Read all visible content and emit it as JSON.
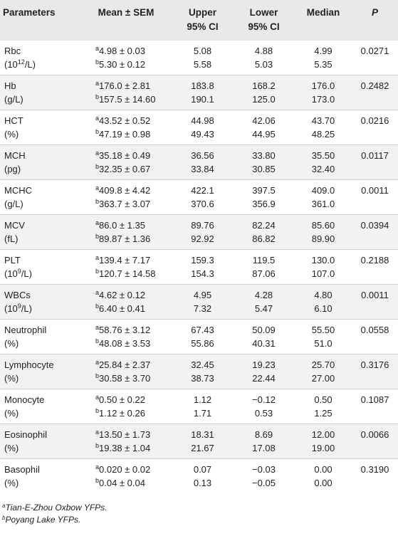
{
  "headers": {
    "parameters": "Parameters",
    "mean_sem": "Mean ± SEM",
    "upper_l1": "Upper",
    "upper_l2": "95% CI",
    "lower_l1": "Lower",
    "lower_l2": "95% CI",
    "median": "Median",
    "p": "P"
  },
  "rows": [
    {
      "name": "Rbc",
      "unit_pre": "(10",
      "unit_sup": "12",
      "unit_post": "/L)",
      "a_mean": "4.98 ± 0.03",
      "a_upper": "5.08",
      "a_lower": "4.88",
      "a_median": "4.99",
      "b_mean": "5.30 ± 0.12",
      "b_upper": "5.58",
      "b_lower": "5.03",
      "b_median": "5.35",
      "p": "0.0271"
    },
    {
      "name": "Hb",
      "unit": "(g/L)",
      "a_mean": "176.0 ± 2.81",
      "a_upper": "183.8",
      "a_lower": "168.2",
      "a_median": "176.0",
      "b_mean": "157.5 ± 14.60",
      "b_upper": "190.1",
      "b_lower": "125.0",
      "b_median": "173.0",
      "p": "0.2482"
    },
    {
      "name": "HCT",
      "unit": "(%)",
      "a_mean": "43.52 ± 0.52",
      "a_upper": "44.98",
      "a_lower": "42.06",
      "a_median": "43.70",
      "b_mean": "47.19 ± 0.98",
      "b_upper": "49.43",
      "b_lower": "44.95",
      "b_median": "48.25",
      "p": "0.0216"
    },
    {
      "name": "MCH",
      "unit": "(pg)",
      "a_mean": "35.18 ± 0.49",
      "a_upper": "36.56",
      "a_lower": "33.80",
      "a_median": "35.50",
      "b_mean": "32.35 ± 0.67",
      "b_upper": "33.84",
      "b_lower": "30.85",
      "b_median": "32.40",
      "p": "0.0117"
    },
    {
      "name": "MCHC",
      "unit": "(g/L)",
      "a_mean": "409.8 ± 4.42",
      "a_upper": "422.1",
      "a_lower": "397.5",
      "a_median": "409.0",
      "b_mean": "363.7 ± 3.07",
      "b_upper": "370.6",
      "b_lower": "356.9",
      "b_median": "361.0",
      "p": "0.0011"
    },
    {
      "name": "MCV",
      "unit": "(fL)",
      "a_mean": "86.0 ± 1.35",
      "a_upper": "89.76",
      "a_lower": "82.24",
      "a_median": "85.60",
      "b_mean": "89.87 ± 1.36",
      "b_upper": "92.92",
      "b_lower": "86.82",
      "b_median": "89.90",
      "p": "0.0394"
    },
    {
      "name": "PLT",
      "unit_pre": "(10",
      "unit_sup": "9",
      "unit_post": "/L)",
      "a_mean": "139.4 ± 7.17",
      "a_upper": "159.3",
      "a_lower": "119.5",
      "a_median": "130.0",
      "b_mean": "120.7 ± 14.58",
      "b_upper": "154.3",
      "b_lower": "87.06",
      "b_median": "107.0",
      "p": "0.2188"
    },
    {
      "name": "WBCs",
      "unit_pre": "(10",
      "unit_sup": "9",
      "unit_post": "/L)",
      "a_mean": "4.62 ± 0.12",
      "a_upper": "4.95",
      "a_lower": "4.28",
      "a_median": "4.80",
      "b_mean": "6.40 ± 0.41",
      "b_upper": "7.32",
      "b_lower": "5.47",
      "b_median": "6.10",
      "p": "0.0011"
    },
    {
      "name": "Neutrophil",
      "unit": "(%)",
      "a_mean": "58.76 ± 3.12",
      "a_upper": "67.43",
      "a_lower": "50.09",
      "a_median": "55.50",
      "b_mean": "48.08 ± 3.53",
      "b_upper": "55.86",
      "b_lower": "40.31",
      "b_median": "51.0",
      "p": "0.0558"
    },
    {
      "name": "Lymphocyte",
      "unit": "(%)",
      "a_mean": "25.84 ± 2.37",
      "a_upper": "32.45",
      "a_lower": "19.23",
      "a_median": "25.70",
      "b_mean": "30.58 ± 3.70",
      "b_upper": "38.73",
      "b_lower": "22.44",
      "b_median": "27.00",
      "p": "0.3176"
    },
    {
      "name": "Monocyte",
      "unit": "(%)",
      "a_mean": "0.50 ± 0.22",
      "a_upper": "1.12",
      "a_lower": "−0.12",
      "a_median": "0.50",
      "b_mean": "1.12 ± 0.26",
      "b_upper": "1.71",
      "b_lower": "0.53",
      "b_median": "1.25",
      "p": "0.1087"
    },
    {
      "name": "Eosinophil",
      "unit": "(%)",
      "a_mean": "13.50 ± 1.73",
      "a_upper": "18.31",
      "a_lower": "8.69",
      "a_median": "12.00",
      "b_mean": "19.38 ± 1.04",
      "b_upper": "21.67",
      "b_lower": "17.08",
      "b_median": "19.00",
      "p": "0.0066"
    },
    {
      "name": "Basophil",
      "unit": "(%)",
      "a_mean": "0.020 ± 0.02",
      "a_upper": "0.07",
      "a_lower": "−0.03",
      "a_median": "0.00",
      "b_mean": "0.04 ± 0.04",
      "b_upper": "0.13",
      "b_lower": "−0.05",
      "b_median": "0.00",
      "p": "0.3190"
    }
  ],
  "markers": {
    "a": "a",
    "b": "b"
  },
  "footnotes": {
    "a_mark": "a",
    "a_text": "Tian-E-Zhou Oxbow YFPs.",
    "b_mark": "b",
    "b_text": "Poyang Lake YFPs."
  }
}
